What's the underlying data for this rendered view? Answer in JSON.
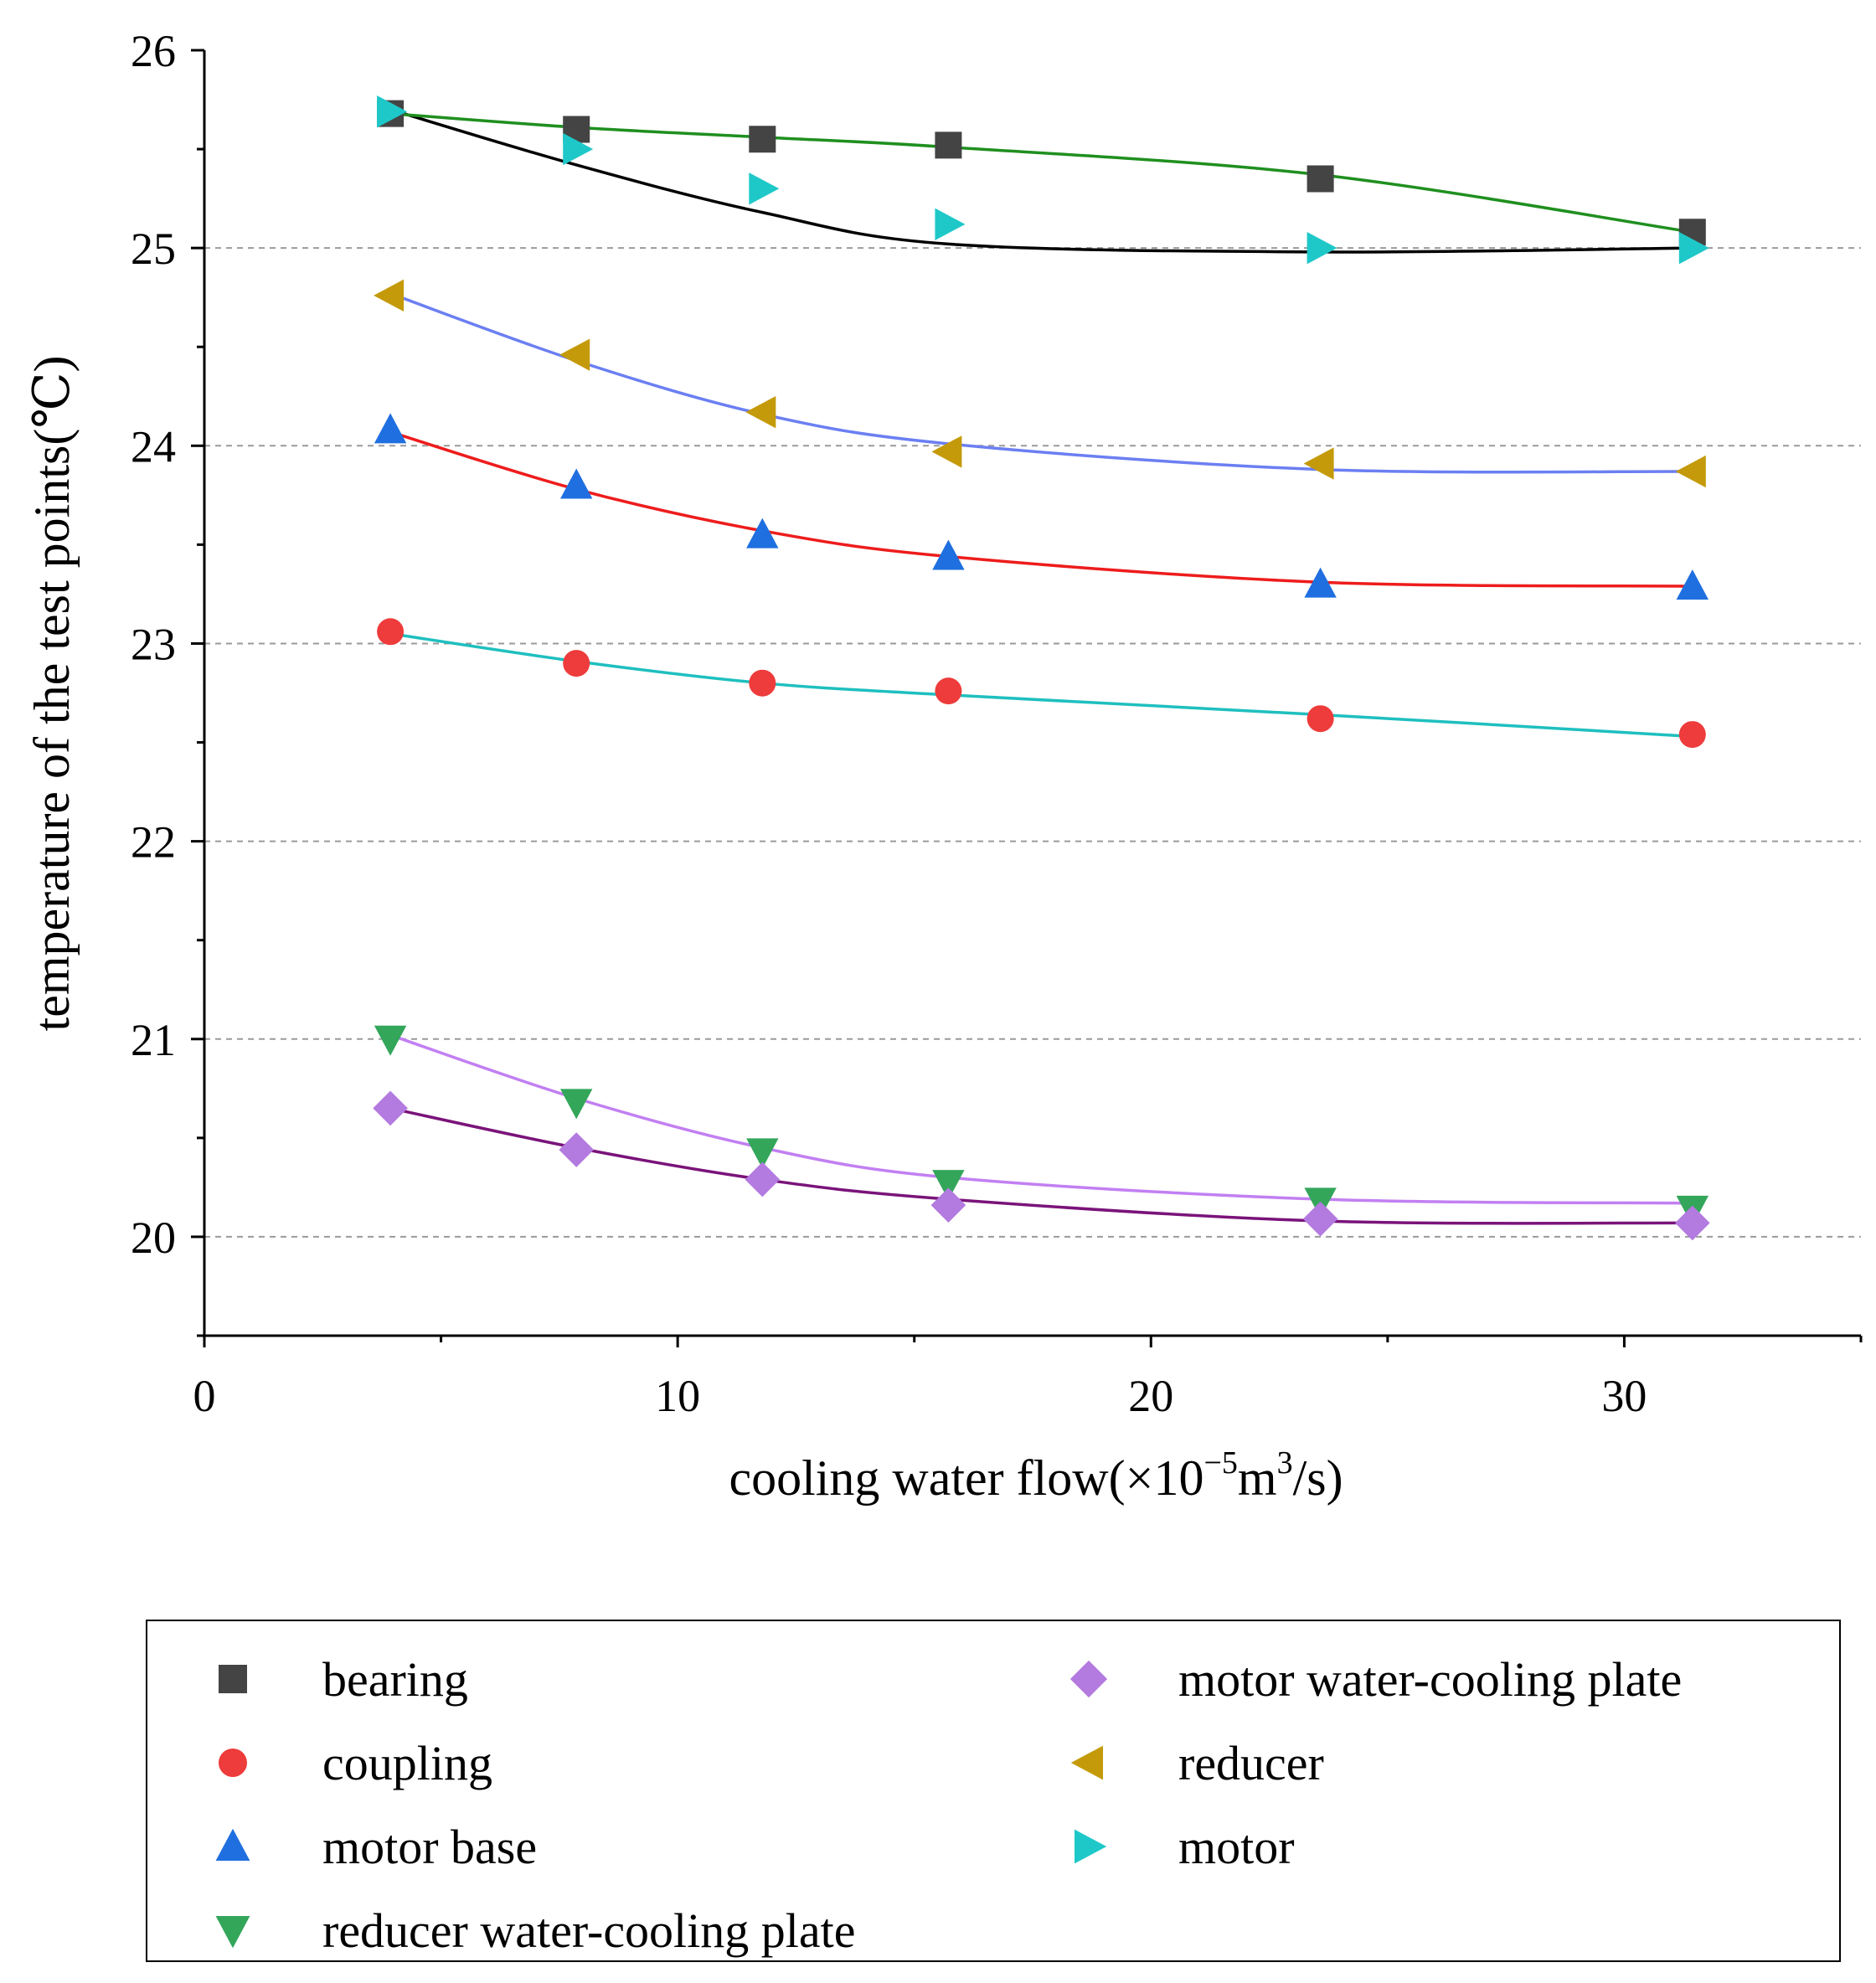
{
  "chart_data": {
    "type": "scatter",
    "title": "",
    "xlabel": "cooling water flow(×10",
    "xlabel_exp1": "−5",
    "xlabel_mid": "m",
    "xlabel_exp2": "3",
    "xlabel_end": "/s)",
    "ylabel": "temperature of the test points(℃)",
    "xlim": [
      0,
      35
    ],
    "ylim": [
      19.5,
      26
    ],
    "xticks": [
      0,
      10,
      20,
      30
    ],
    "xtick_labels": [
      "0",
      "10",
      "20",
      "30"
    ],
    "yticks": [
      20,
      21,
      22,
      23,
      24,
      25,
      26
    ],
    "ytick_labels": [
      "20",
      "21",
      "22",
      "23",
      "24",
      "25",
      "26"
    ],
    "x_minor_ticks": [
      5,
      15,
      25,
      35
    ],
    "y_minor_ticks": [
      19.5,
      20.5,
      21.5,
      22.5,
      23.5,
      24.5,
      25.5
    ],
    "grid_y": [
      20,
      21,
      22,
      23,
      24,
      25
    ],
    "x": [
      3.93,
      7.86,
      11.79,
      15.72,
      23.58,
      31.44
    ],
    "series": [
      {
        "name": "bearing",
        "marker": "square",
        "color": "#444444",
        "fit_color": "#000000",
        "values": [
          25.68,
          25.6,
          25.55,
          25.52,
          25.35,
          25.08
        ],
        "fit": [
          25.7,
          25.42,
          25.18,
          25.02,
          24.98,
          25.0
        ]
      },
      {
        "name": "coupling",
        "marker": "circle",
        "color": "#ee3b3b",
        "fit_color": "#1fbfbf",
        "values": [
          23.06,
          22.9,
          22.8,
          22.76,
          22.62,
          22.54
        ],
        "fit": [
          23.05,
          22.91,
          22.8,
          22.74,
          22.64,
          22.53
        ]
      },
      {
        "name": "motor base",
        "marker": "triangle-up",
        "color": "#1f6fe0",
        "fit_color": "#ee1c1c",
        "values": [
          24.08,
          23.8,
          23.55,
          23.44,
          23.3,
          23.29
        ],
        "fit": [
          24.07,
          23.78,
          23.57,
          23.44,
          23.31,
          23.29
        ]
      },
      {
        "name": "reducer water-cooling plate",
        "marker": "triangle-down",
        "color": "#33a65a",
        "fit_color": "#c27ff2",
        "values": [
          21.0,
          20.68,
          20.43,
          20.27,
          20.18,
          20.14
        ],
        "fit": [
          21.02,
          20.7,
          20.45,
          20.3,
          20.19,
          20.17
        ]
      },
      {
        "name": "motor water-cooling plate",
        "marker": "diamond",
        "color": "#b37ae0",
        "fit_color": "#7a137a",
        "values": [
          20.65,
          20.44,
          20.29,
          20.16,
          20.09,
          20.07
        ],
        "fit": [
          20.65,
          20.45,
          20.29,
          20.19,
          20.08,
          20.07
        ]
      },
      {
        "name": "reducer",
        "marker": "triangle-left",
        "color": "#c49a0a",
        "fit_color": "#6b7ff2",
        "values": [
          24.76,
          24.46,
          24.17,
          23.97,
          23.91,
          23.87
        ],
        "fit": [
          24.77,
          24.43,
          24.16,
          24.01,
          23.88,
          23.87
        ]
      },
      {
        "name": "motor",
        "marker": "triangle-right",
        "color": "#1fc8c8",
        "fit_color": "#1f8f1f",
        "values": [
          25.69,
          25.5,
          25.3,
          25.12,
          25.0,
          25.0
        ],
        "fit": [
          25.68,
          25.61,
          25.56,
          25.51,
          25.37,
          25.08
        ]
      }
    ],
    "legend": {
      "position": "bottom",
      "columns": [
        [
          "bearing",
          "coupling",
          "motor base",
          "reducer water-cooling plate"
        ],
        [
          "motor water-cooling plate",
          "reducer",
          "motor"
        ]
      ]
    }
  }
}
